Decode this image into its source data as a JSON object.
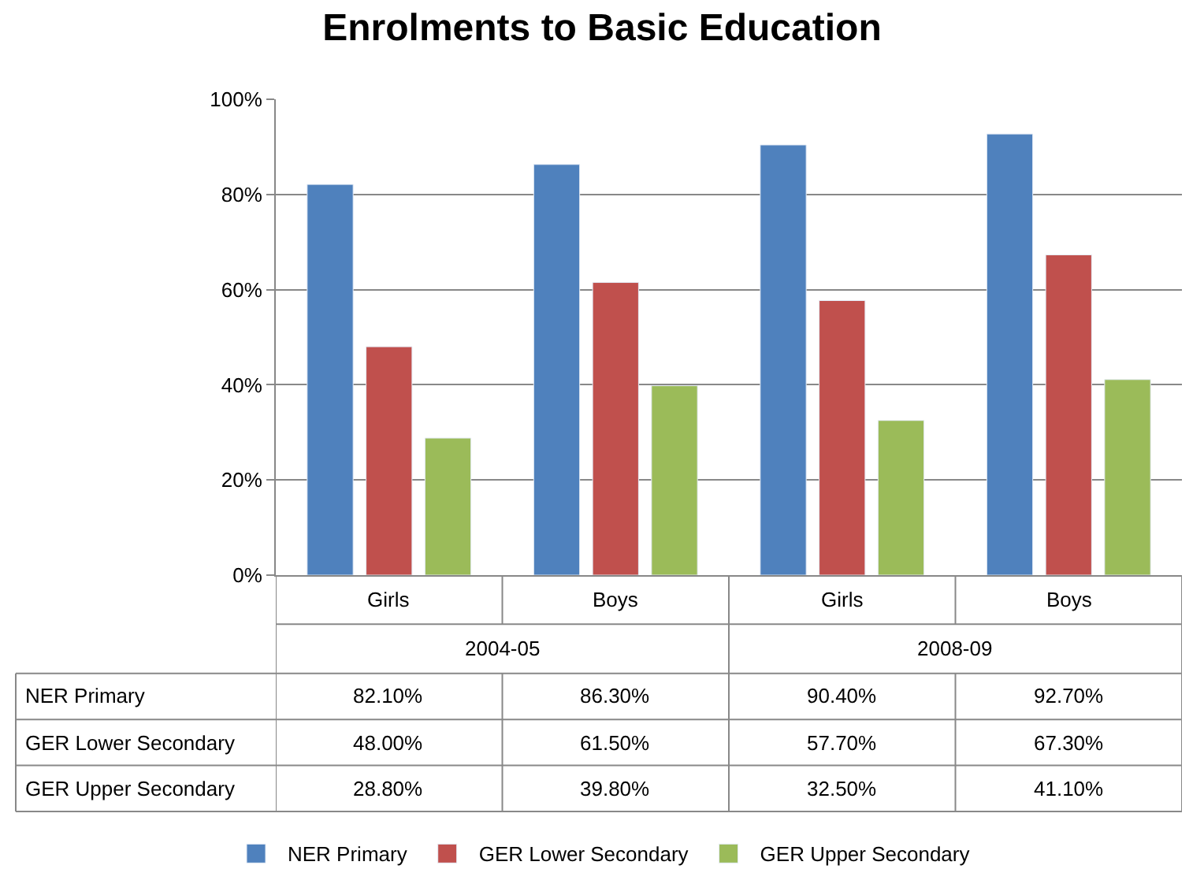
{
  "chart_data": {
    "type": "bar",
    "title": "Enrolments to Basic Education",
    "categories": [
      "Girls",
      "Boys",
      "Girls",
      "Boys"
    ],
    "annotations": [
      "2004-05",
      "2008-09"
    ],
    "series": [
      {
        "name": "NER Primary",
        "color": "#4f81bd",
        "values": [
          82.1,
          86.3,
          90.4,
          92.7
        ],
        "value_labels": [
          "82.10%",
          "86.30%",
          "90.40%",
          "92.70%"
        ]
      },
      {
        "name": "GER Lower Secondary",
        "color": "#c0504d",
        "values": [
          48.0,
          61.5,
          57.7,
          67.3
        ],
        "value_labels": [
          "48.00%",
          "61.50%",
          "57.70%",
          "67.30%"
        ]
      },
      {
        "name": "GER Upper Secondary",
        "color": "#9bbb59",
        "values": [
          28.8,
          39.8,
          32.5,
          41.1
        ],
        "value_labels": [
          "28.80%",
          "39.80%",
          "32.50%",
          "41.10%"
        ]
      }
    ],
    "ylim": [
      0,
      100
    ],
    "yticks": [
      {
        "value": 0,
        "label": "0%"
      },
      {
        "value": 20,
        "label": "20%"
      },
      {
        "value": 40,
        "label": "40%"
      },
      {
        "value": 60,
        "label": "60%"
      },
      {
        "value": 80,
        "label": "80%"
      },
      {
        "value": 100,
        "label": "100%"
      }
    ],
    "grid": "y",
    "legend": "bottom"
  }
}
